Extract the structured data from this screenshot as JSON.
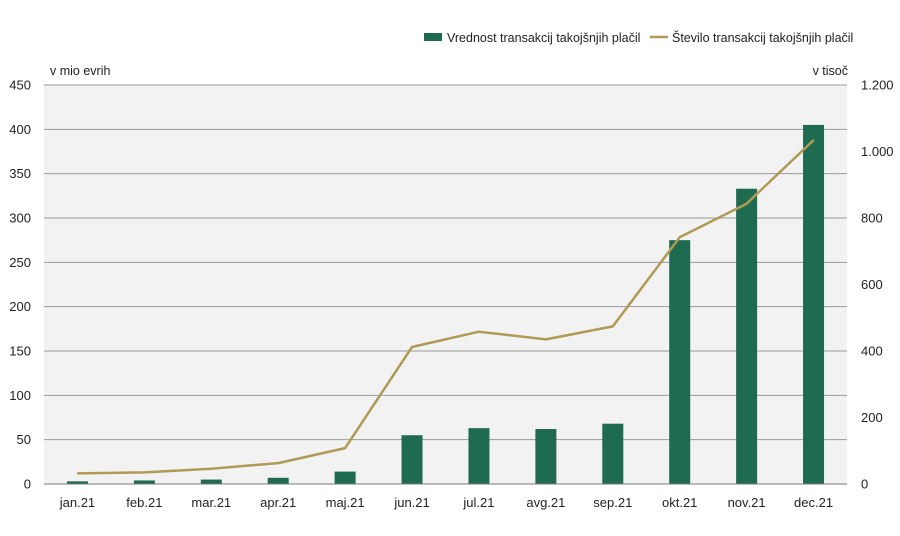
{
  "chart_data": {
    "type": "bar+line",
    "categories": [
      "jan.21",
      "feb.21",
      "mar.21",
      "apr.21",
      "maj.21",
      "jun.21",
      "jul.21",
      "avg.21",
      "sep.21",
      "okt.21",
      "nov.21",
      "dec.21"
    ],
    "series": [
      {
        "name": "Vrednost transakcij takojšnjih plačil",
        "type": "bar",
        "axis": "left",
        "color": "#1e6b52",
        "values": [
          3,
          4,
          5,
          7,
          14,
          55,
          63,
          62,
          68,
          275,
          333,
          405
        ]
      },
      {
        "name": "Število transakcij takojšnjih plačil",
        "type": "line",
        "axis": "right",
        "color": "#b09a55",
        "values": [
          32,
          35,
          46,
          63,
          108,
          412,
          458,
          435,
          474,
          742,
          843,
          1034
        ]
      }
    ],
    "left_axis": {
      "label": "v mio evrih",
      "min": 0,
      "max": 450,
      "ticks": [
        0,
        50,
        100,
        150,
        200,
        250,
        300,
        350,
        400,
        450
      ],
      "tick_labels": [
        "0",
        "50",
        "100",
        "150",
        "200",
        "250",
        "300",
        "350",
        "400",
        "450"
      ]
    },
    "right_axis": {
      "label": "v tisoč",
      "min": 0,
      "max": 1200,
      "ticks": [
        0,
        200,
        400,
        600,
        800,
        1000,
        1200
      ],
      "tick_labels": [
        "0",
        "200",
        "400",
        "600",
        "800",
        "1.000",
        "1.200"
      ]
    },
    "grid": true,
    "legend_position": "top-right",
    "plot_background": "#f2f2f2",
    "grid_color": "#9a9a9a"
  }
}
